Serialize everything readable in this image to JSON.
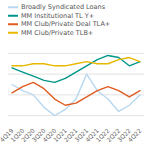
{
  "chart_data": {
    "type": "line",
    "categories": [
      "4Q19",
      "1Q20",
      "2Q20",
      "3Q20",
      "4Q20",
      "1Q21",
      "2Q21",
      "3Q21",
      "4Q21",
      "1Q22",
      "2Q22",
      "3Q22",
      "4Q22"
    ],
    "series": [
      {
        "name": "Broadly Syndicated Loans",
        "color": "#b8d8f0",
        "values": [
          3.5,
          3.2,
          3.0,
          2.4,
          2.0,
          2.3,
          2.8,
          4.0,
          3.2,
          2.8,
          2.2,
          2.5,
          3.0
        ]
      },
      {
        "name": "MM Institutional TL Y+",
        "color": "#00968a",
        "values": [
          4.3,
          4.1,
          3.9,
          3.7,
          3.6,
          3.8,
          4.1,
          4.4,
          4.7,
          4.9,
          4.8,
          4.4,
          4.6
        ]
      },
      {
        "name": "MM Club/Private Deal TLA+",
        "color": "#e05c20",
        "values": [
          3.1,
          3.4,
          3.6,
          3.3,
          2.8,
          2.5,
          2.6,
          2.9,
          3.2,
          3.4,
          3.2,
          2.9,
          3.2
        ]
      },
      {
        "name": "MM Club/Private TLB+",
        "color": "#e8b800",
        "values": [
          4.4,
          4.4,
          4.5,
          4.5,
          4.4,
          4.4,
          4.5,
          4.6,
          4.5,
          4.5,
          4.7,
          4.8,
          4.6
        ]
      }
    ],
    "ylim": [
      1.5,
      5.5
    ],
    "yticks": [
      2,
      3,
      4,
      5
    ],
    "grid": true,
    "legend": "top",
    "tick_labels": "x"
  }
}
